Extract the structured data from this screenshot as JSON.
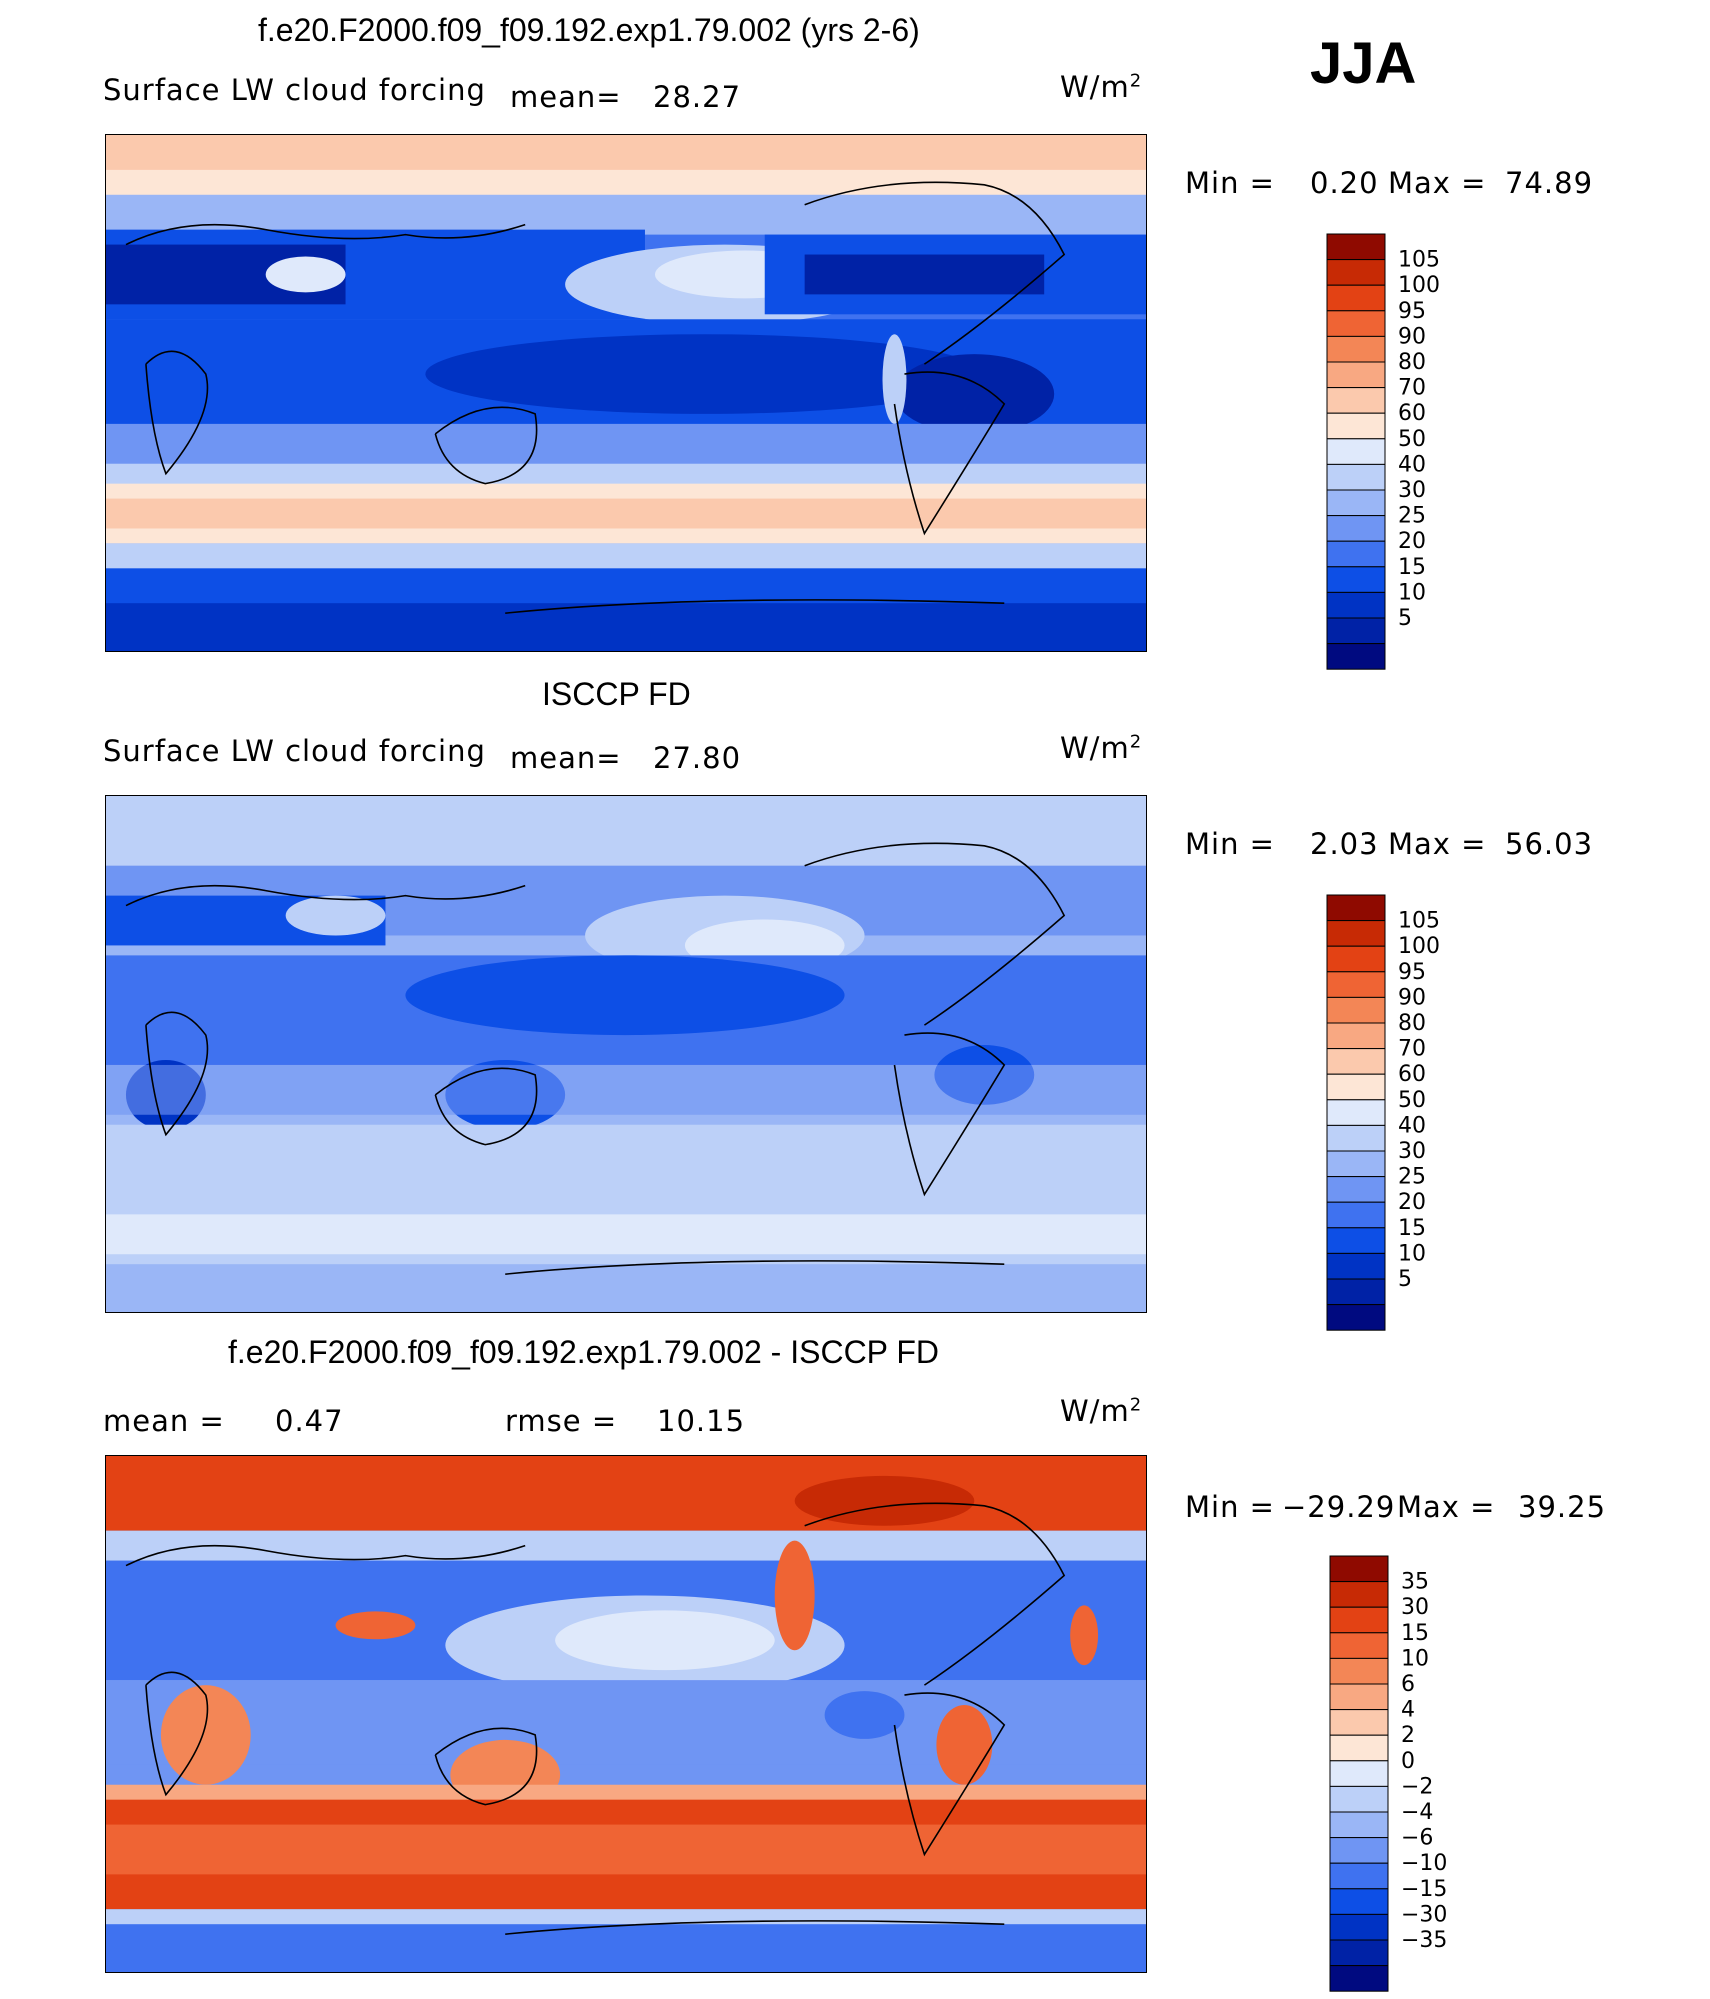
{
  "season": "JJA",
  "colors": {
    "abs_scale": [
      "#000a80",
      "#0022a6",
      "#0033c4",
      "#0d4fe6",
      "#3f72f0",
      "#6f95f3",
      "#9ab6f6",
      "#bcd0f8",
      "#dfe9fb",
      "#fde6d6",
      "#fbc9ad",
      "#f8a882",
      "#f38656",
      "#ef6434",
      "#e34214",
      "#c72a05",
      "#8f0a00"
    ],
    "diff_scale": [
      "#000a80",
      "#0022a6",
      "#0033c4",
      "#0d4fe6",
      "#3f72f0",
      "#6f95f3",
      "#9ab6f6",
      "#bcd0f8",
      "#dfe9fb",
      "#fde6d6",
      "#fbc9ad",
      "#f8a882",
      "#f38656",
      "#ef6434",
      "#e34214",
      "#c72a05",
      "#8f0a00"
    ]
  },
  "panels": [
    {
      "title": "f.e20.F2000.f09_f09.192.exp1.79.002 (yrs 2-6)",
      "variable": "Surface LW cloud forcing",
      "stat_label": "mean=",
      "stat_value": "28.27",
      "units_base": "W/m",
      "units_exp": "2",
      "min_label": "Min  =",
      "min_value": "0.20",
      "max_label": "Max  =",
      "max_value": "74.89",
      "colorbar_labels": [
        "105",
        "100",
        "95",
        "90",
        "80",
        "70",
        "60",
        "50",
        "40",
        "30",
        "25",
        "20",
        "15",
        "10",
        "5"
      ]
    },
    {
      "title": "ISCCP FD",
      "variable": "Surface LW cloud forcing",
      "stat_label": "mean=",
      "stat_value": "27.80",
      "units_base": "W/m",
      "units_exp": "2",
      "min_label": "Min  =",
      "min_value": "2.03",
      "max_label": "Max  =",
      "max_value": "56.03",
      "colorbar_labels": [
        "105",
        "100",
        "95",
        "90",
        "80",
        "70",
        "60",
        "50",
        "40",
        "30",
        "25",
        "20",
        "15",
        "10",
        "5"
      ]
    },
    {
      "title": "f.e20.F2000.f09_f09.192.exp1.79.002 - ISCCP FD",
      "mean_label": "mean  =",
      "mean_value": "0.47",
      "rmse_label": "rmse  =",
      "rmse_value": "10.15",
      "units_base": "W/m",
      "units_exp": "2",
      "min_label": "Min  =",
      "min_value": "−29.29",
      "max_label": "Max  =",
      "max_value": "39.25",
      "colorbar_labels": [
        "35",
        "30",
        "15",
        "10",
        "6",
        "4",
        "2",
        "0",
        "−2",
        "−4",
        "−6",
        "−10",
        "−15",
        "−30",
        "−35"
      ]
    }
  ]
}
